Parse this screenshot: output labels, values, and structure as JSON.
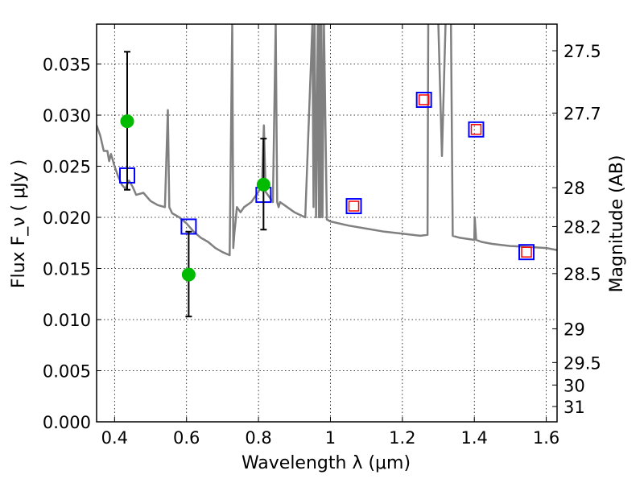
{
  "chart_data": {
    "type": "scatter",
    "xlabel": "Wavelength  λ (μm)",
    "ylabel": "Flux  F_ν  ( μJy )",
    "y2label": "Magnitude (AB)",
    "xlim": [
      0.35,
      1.63
    ],
    "ylim": [
      0.0,
      0.0389
    ],
    "x_ticks": [
      0.4,
      0.6,
      0.8,
      1.0,
      1.2,
      1.4,
      1.6
    ],
    "x_tick_labels": [
      "0.4",
      "0.6",
      "0.8",
      "1",
      "1.2",
      "1.4",
      "1.6"
    ],
    "y_ticks": [
      0.0,
      0.005,
      0.01,
      0.015,
      0.02,
      0.025,
      0.03,
      0.035
    ],
    "y_tick_labels": [
      "0.000",
      "0.005",
      "0.010",
      "0.015",
      "0.020",
      "0.025",
      "0.030",
      "0.035"
    ],
    "y2_ticks": [
      {
        "label": "27.5",
        "flux": 0.0363
      },
      {
        "label": "27.7",
        "flux": 0.0302
      },
      {
        "label": "28",
        "flux": 0.0229
      },
      {
        "label": "28.2",
        "flux": 0.0191
      },
      {
        "label": "28.5",
        "flux": 0.0145
      },
      {
        "label": "29",
        "flux": 0.0091
      },
      {
        "label": "29.5",
        "flux": 0.0058
      },
      {
        "label": "30",
        "flux": 0.0036
      },
      {
        "label": "31",
        "flux": 0.0015
      }
    ],
    "grid": true,
    "series": [
      {
        "kind": "observed_flux_with_error",
        "marker": "circle",
        "color": "#00bb00",
        "points": [
          {
            "x": 0.435,
            "y": 0.0294,
            "yerr_low": 0.0227,
            "yerr_high": 0.0362
          },
          {
            "x": 0.606,
            "y": 0.0144,
            "yerr_low": 0.0103,
            "yerr_high": 0.0186
          },
          {
            "x": 0.814,
            "y": 0.0232,
            "yerr_low": 0.0188,
            "yerr_high": 0.0277
          }
        ]
      },
      {
        "kind": "model_band_flux",
        "marker": "square",
        "color": "#0000ff",
        "points": [
          {
            "x": 0.435,
            "y": 0.0241
          },
          {
            "x": 0.606,
            "y": 0.0191
          },
          {
            "x": 0.814,
            "y": 0.0222
          },
          {
            "x": 1.065,
            "y": 0.0211
          },
          {
            "x": 1.26,
            "y": 0.0315
          },
          {
            "x": 1.405,
            "y": 0.0286
          },
          {
            "x": 1.545,
            "y": 0.0166
          }
        ]
      },
      {
        "kind": "upper_measurement",
        "marker": "square",
        "color": "#ff0000",
        "points": [
          {
            "x": 1.065,
            "y": 0.0211
          },
          {
            "x": 1.26,
            "y": 0.0315
          },
          {
            "x": 1.405,
            "y": 0.0286
          },
          {
            "x": 1.545,
            "y": 0.0166
          }
        ]
      },
      {
        "kind": "model_spectrum",
        "line": true,
        "color": "#808080",
        "x": [
          0.35,
          0.36,
          0.37,
          0.38,
          0.385,
          0.39,
          0.4,
          0.41,
          0.42,
          0.43,
          0.44,
          0.45,
          0.46,
          0.48,
          0.5,
          0.52,
          0.54,
          0.548,
          0.552,
          0.556,
          0.56,
          0.58,
          0.6,
          0.62,
          0.64,
          0.66,
          0.68,
          0.7,
          0.72,
          0.727,
          0.73,
          0.733,
          0.736,
          0.74,
          0.75,
          0.76,
          0.78,
          0.8,
          0.81,
          0.815,
          0.82,
          0.83,
          0.84,
          0.848,
          0.852,
          0.856,
          0.86,
          0.88,
          0.9,
          0.93,
          0.95,
          0.953,
          0.956,
          0.96,
          0.965,
          0.968,
          0.97,
          0.972,
          0.975,
          0.978,
          0.982,
          0.99,
          1.0,
          1.05,
          1.1,
          1.15,
          1.2,
          1.25,
          1.27,
          1.272,
          1.28,
          1.3,
          1.31,
          1.32,
          1.33,
          1.335,
          1.34,
          1.36,
          1.4,
          1.401,
          1.405,
          1.42,
          1.45,
          1.5,
          1.55,
          1.6,
          1.63
        ],
        "y": [
          0.029,
          0.028,
          0.0265,
          0.0265,
          0.0255,
          0.0262,
          0.025,
          0.024,
          0.0232,
          0.0228,
          0.0236,
          0.023,
          0.0222,
          0.0224,
          0.0216,
          0.0212,
          0.021,
          0.0305,
          0.021,
          0.0207,
          0.0204,
          0.02,
          0.0194,
          0.0186,
          0.018,
          0.0176,
          0.017,
          0.0166,
          0.0163,
          0.039,
          0.017,
          0.0185,
          0.0195,
          0.021,
          0.0205,
          0.021,
          0.0215,
          0.0225,
          0.0235,
          0.029,
          0.0225,
          0.022,
          0.0215,
          0.039,
          0.0215,
          0.021,
          0.0215,
          0.021,
          0.0205,
          0.02,
          0.039,
          0.021,
          0.039,
          0.02,
          0.039,
          0.02,
          0.039,
          0.02,
          0.039,
          0.02,
          0.039,
          0.0198,
          0.0196,
          0.0192,
          0.0189,
          0.0186,
          0.0184,
          0.0182,
          0.0183,
          0.039,
          0.039,
          0.039,
          0.026,
          0.039,
          0.039,
          0.039,
          0.0182,
          0.018,
          0.0178,
          0.02,
          0.0178,
          0.0176,
          0.0174,
          0.0172,
          0.0171,
          0.017,
          0.0168
        ]
      }
    ]
  }
}
